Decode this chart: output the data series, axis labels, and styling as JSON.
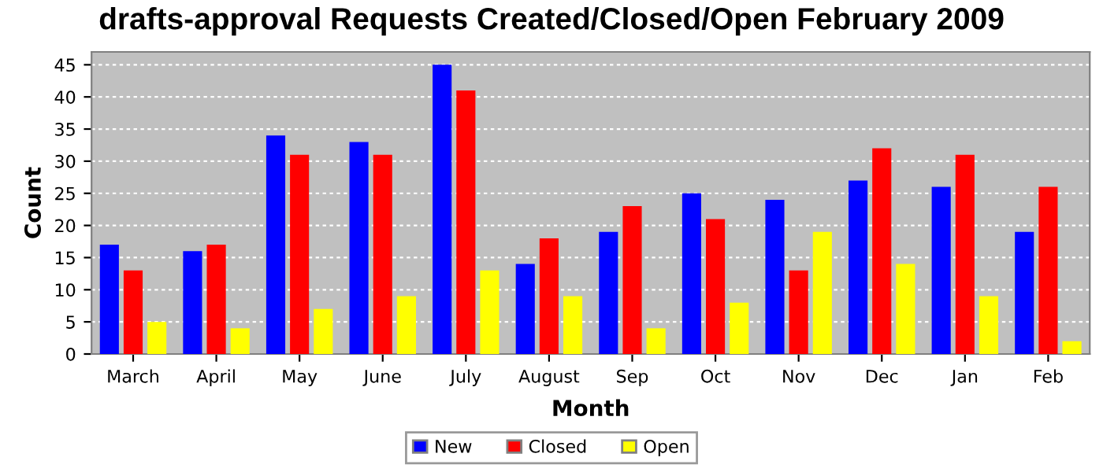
{
  "chart_data": {
    "type": "bar",
    "title": "drafts-approval Requests Created/Closed/Open February 2009",
    "xlabel": "Month",
    "ylabel": "Count",
    "categories": [
      "March",
      "April",
      "May",
      "June",
      "July",
      "August",
      "Sep",
      "Oct",
      "Nov",
      "Dec",
      "Jan",
      "Feb"
    ],
    "series": [
      {
        "name": "New",
        "color": "#0000ff",
        "values": [
          17,
          16,
          34,
          33,
          45,
          14,
          19,
          25,
          24,
          27,
          26,
          19
        ]
      },
      {
        "name": "Closed",
        "color": "#ff0000",
        "values": [
          13,
          17,
          31,
          31,
          41,
          18,
          23,
          21,
          13,
          32,
          31,
          26
        ]
      },
      {
        "name": "Open",
        "color": "#ffff00",
        "values": [
          5,
          4,
          7,
          9,
          13,
          9,
          4,
          8,
          19,
          14,
          9,
          2
        ]
      }
    ],
    "ylim": [
      0,
      47
    ],
    "yticks": [
      0,
      5,
      10,
      15,
      20,
      25,
      30,
      35,
      40,
      45
    ],
    "grid": "y",
    "legend": "bottom"
  }
}
